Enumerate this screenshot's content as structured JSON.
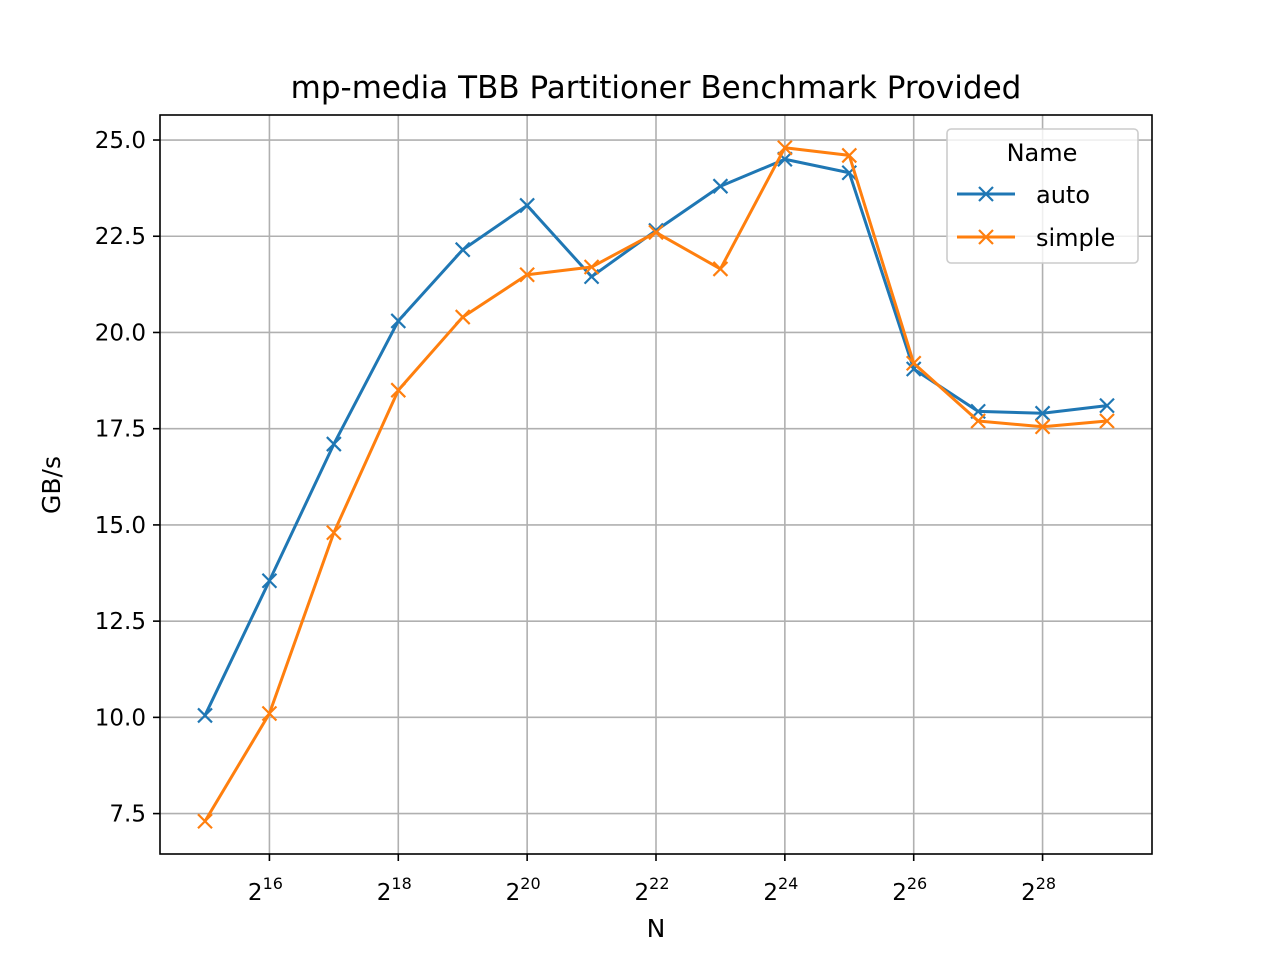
{
  "chart_data": {
    "type": "line",
    "title": "mp-media TBB Partitioner Benchmark Provided",
    "xlabel": "N",
    "ylabel": "GB/s",
    "x_scale": "log2",
    "x": [
      32768,
      65536,
      131072,
      262144,
      524288,
      1048576,
      2097152,
      4194304,
      8388608,
      16777216,
      33554432,
      67108864,
      134217728,
      268435456,
      536870912
    ],
    "x_ticks": [
      {
        "value": 65536,
        "base": "2",
        "exp": "16"
      },
      {
        "value": 262144,
        "base": "2",
        "exp": "18"
      },
      {
        "value": 1048576,
        "base": "2",
        "exp": "20"
      },
      {
        "value": 4194304,
        "base": "2",
        "exp": "22"
      },
      {
        "value": 16777216,
        "base": "2",
        "exp": "24"
      },
      {
        "value": 67108864,
        "base": "2",
        "exp": "26"
      },
      {
        "value": 268435456,
        "base": "2",
        "exp": "28"
      }
    ],
    "ylim": [
      6.45,
      25.65
    ],
    "y_ticks": [
      7.5,
      10.0,
      12.5,
      15.0,
      17.5,
      20.0,
      22.5,
      25.0
    ],
    "y_tick_labels": [
      "7.5",
      "10.0",
      "12.5",
      "15.0",
      "17.5",
      "20.0",
      "22.5",
      "25.0"
    ],
    "grid": true,
    "legend": {
      "title": "Name",
      "position": "top-right"
    },
    "marker": "x",
    "series": [
      {
        "name": "auto",
        "color": "#1f77b4",
        "values": [
          10.05,
          13.55,
          17.1,
          20.3,
          22.15,
          23.3,
          21.45,
          22.65,
          23.8,
          24.5,
          24.15,
          19.05,
          17.95,
          17.9,
          18.1
        ]
      },
      {
        "name": "simple",
        "color": "#ff7f0e",
        "values": [
          7.3,
          10.1,
          14.8,
          18.5,
          20.4,
          21.5,
          21.7,
          22.6,
          21.65,
          24.8,
          24.6,
          19.2,
          17.7,
          17.55,
          17.7
        ]
      }
    ]
  }
}
